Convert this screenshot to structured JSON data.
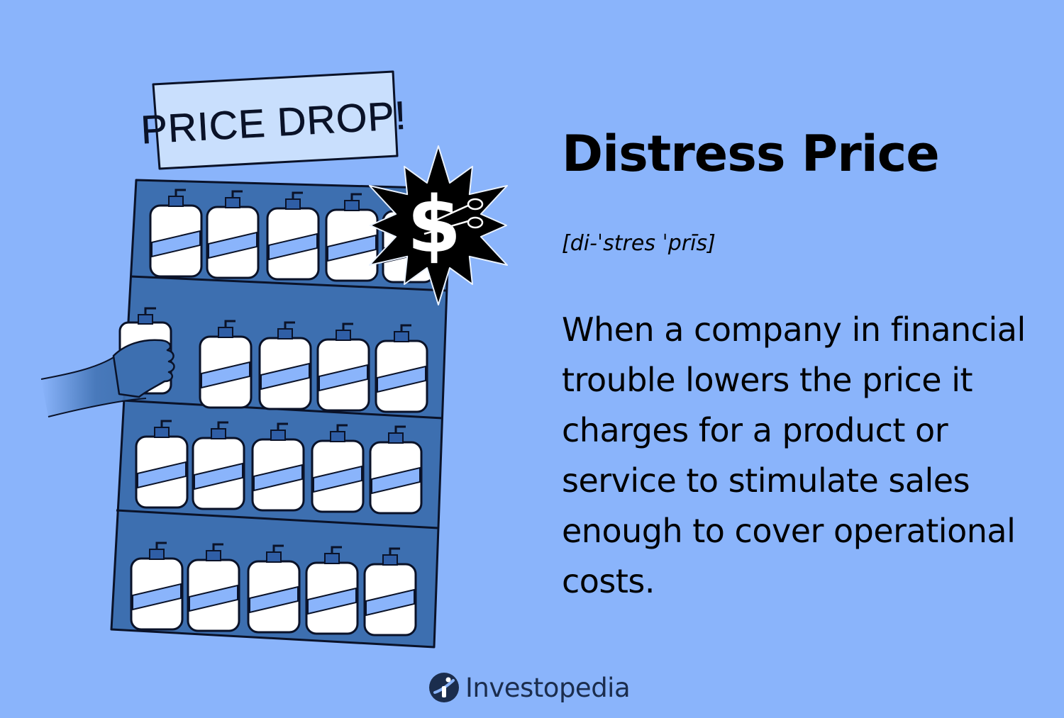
{
  "sign": {
    "text": "PRICE DROP!"
  },
  "badge": {
    "symbol": "$"
  },
  "term": {
    "title": "Distress Price",
    "pronunciation": "[di-ˈstres ˈprīs]",
    "definition": "When a company in financial trouble lowers the price it charges for a product or service to stimulate sales enough to cover operational costs."
  },
  "brand": {
    "name": "Investopedia",
    "icon": "investopedia-logo-icon"
  },
  "colors": {
    "background": "#8ab4fb",
    "shelf": "#3d6fb0",
    "bottle": "#ffffff",
    "label_band": "#8ab4fb",
    "sign_fill": "#c9dffd",
    "badge": "#000000",
    "brand": "#1b2d4d"
  }
}
